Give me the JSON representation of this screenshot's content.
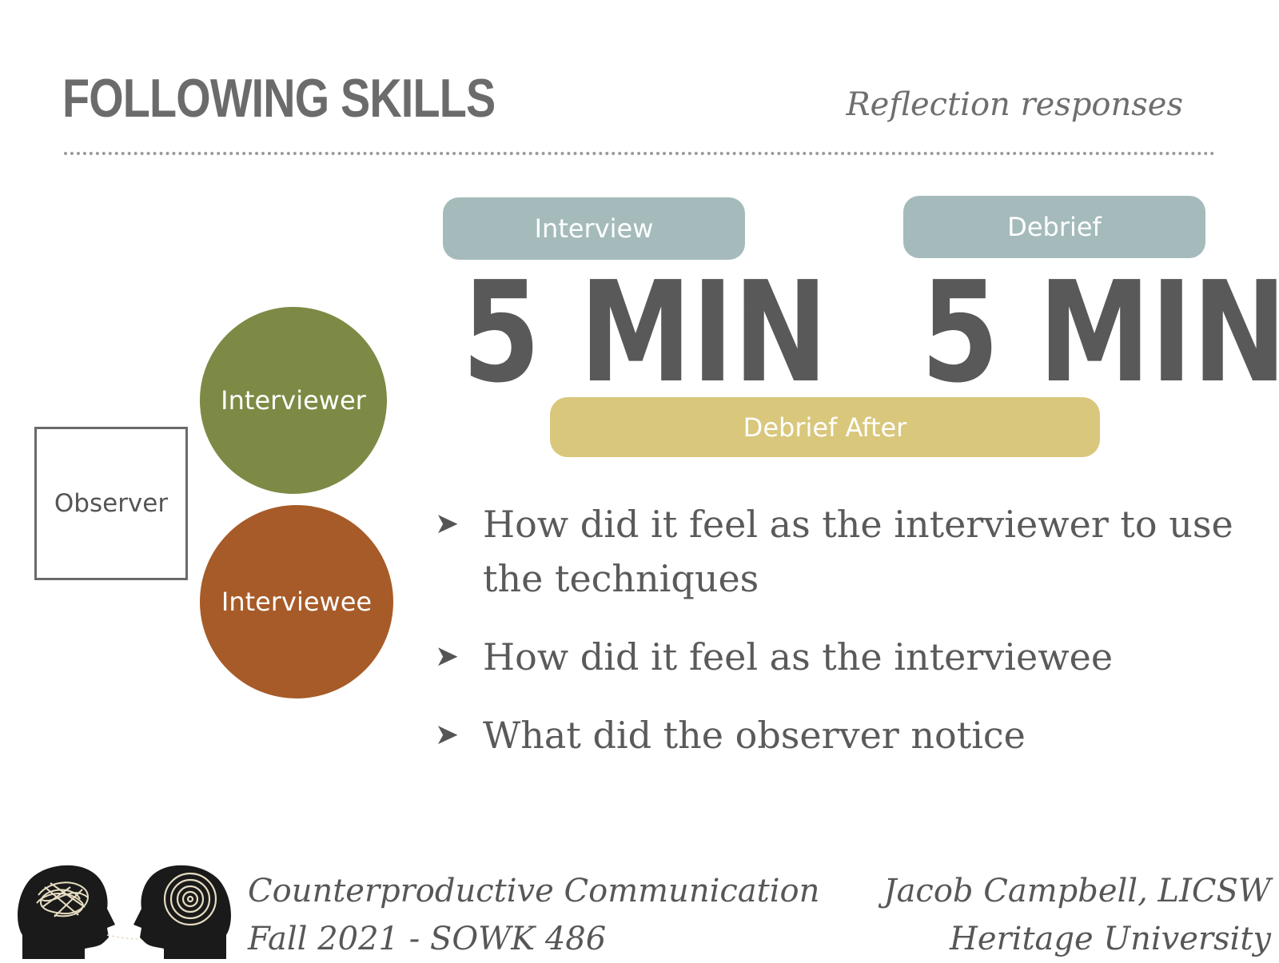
{
  "header": {
    "title": "FOLLOWING SKILLS",
    "subtitle": "Reflection responses"
  },
  "timeline": {
    "interview": {
      "label": "Interview",
      "duration": "5 MIN"
    },
    "debrief": {
      "label": "Debrief",
      "duration": "5 MIN"
    },
    "debrief_after": "Debrief After"
  },
  "roles": {
    "observer": "Observer",
    "interviewer": "Interviewer",
    "interviewee": "Interviewee"
  },
  "bullets": [
    "How did it feel as the interviewer to use the techniques",
    "How did it feel as the interviewee",
    "What did the observer notice"
  ],
  "footer": {
    "course": "Counterproductive Communication",
    "term": "Fall 2021 - SOWK 486",
    "author": "Jacob Campbell, LICSW",
    "school": "Heritage University"
  },
  "colors": {
    "blue_pill": "#a5bbbb",
    "gold_pill": "#d9c77c",
    "interviewer": "#7c8a45",
    "interviewee": "#a75b28",
    "text_gray": "#595959"
  }
}
